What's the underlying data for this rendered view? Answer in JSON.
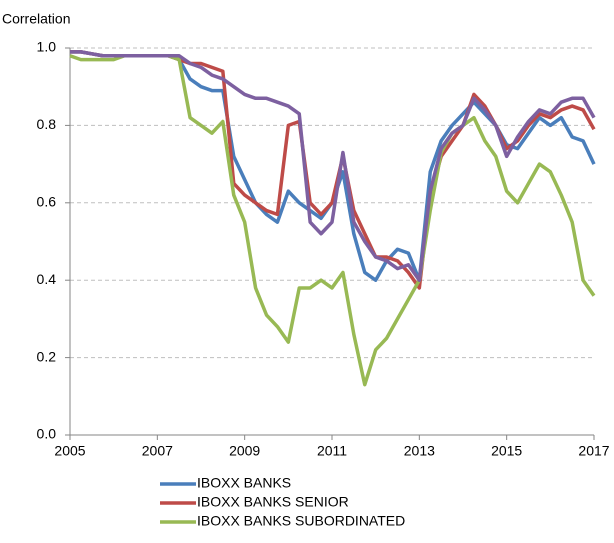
{
  "chart_data": {
    "type": "line",
    "ylabel": "Correlation",
    "x": [
      2005,
      2005.25,
      2005.5,
      2005.75,
      2006,
      2006.25,
      2006.5,
      2006.75,
      2007,
      2007.25,
      2007.5,
      2007.75,
      2008,
      2008.25,
      2008.5,
      2008.75,
      2009,
      2009.25,
      2009.5,
      2009.75,
      2010,
      2010.25,
      2010.5,
      2010.75,
      2011,
      2011.25,
      2011.5,
      2011.75,
      2012,
      2012.25,
      2012.5,
      2012.75,
      2013,
      2013.25,
      2013.5,
      2013.75,
      2014,
      2014.25,
      2014.5,
      2014.75,
      2015,
      2015.25,
      2015.5,
      2015.75,
      2016,
      2016.25,
      2016.5,
      2016.75,
      2017
    ],
    "series": [
      {
        "name": "IBOXX BANKS",
        "color": "#4a7ebb",
        "values": [
          0.99,
          0.99,
          0.985,
          0.98,
          0.98,
          0.98,
          0.98,
          0.98,
          0.98,
          0.98,
          0.97,
          0.92,
          0.9,
          0.89,
          0.89,
          0.72,
          0.66,
          0.6,
          0.57,
          0.55,
          0.63,
          0.6,
          0.58,
          0.56,
          0.6,
          0.68,
          0.52,
          0.42,
          0.4,
          0.45,
          0.48,
          0.47,
          0.4,
          0.68,
          0.76,
          0.8,
          0.83,
          0.86,
          0.83,
          0.8,
          0.75,
          0.74,
          0.78,
          0.82,
          0.8,
          0.82,
          0.77,
          0.76,
          0.7
        ]
      },
      {
        "name": "IBOXX BANKS SENIOR",
        "color": "#be4b48",
        "values": [
          0.99,
          0.99,
          0.985,
          0.98,
          0.98,
          0.98,
          0.98,
          0.98,
          0.98,
          0.98,
          0.97,
          0.96,
          0.96,
          0.95,
          0.94,
          0.65,
          0.62,
          0.6,
          0.58,
          0.57,
          0.8,
          0.81,
          0.6,
          0.57,
          0.6,
          0.72,
          0.58,
          0.52,
          0.46,
          0.46,
          0.45,
          0.42,
          0.38,
          0.62,
          0.72,
          0.76,
          0.8,
          0.88,
          0.85,
          0.8,
          0.74,
          0.76,
          0.8,
          0.83,
          0.82,
          0.84,
          0.85,
          0.84,
          0.79
        ]
      },
      {
        "name": "IBOXX BANKS SUBORDINATED",
        "color": "#98b954",
        "values": [
          0.98,
          0.97,
          0.97,
          0.97,
          0.97,
          0.98,
          0.98,
          0.98,
          0.98,
          0.98,
          0.97,
          0.82,
          0.8,
          0.78,
          0.81,
          0.62,
          0.55,
          0.38,
          0.31,
          0.28,
          0.24,
          0.38,
          0.38,
          0.4,
          0.38,
          0.42,
          0.26,
          0.13,
          0.22,
          0.25,
          0.3,
          0.35,
          0.4,
          0.58,
          0.73,
          0.78,
          0.8,
          0.82,
          0.76,
          0.72,
          0.63,
          0.6,
          0.65,
          0.7,
          0.68,
          0.62,
          0.55,
          0.4,
          0.36
        ]
      },
      {
        "color": "#7d60a0",
        "values": [
          0.99,
          0.99,
          0.985,
          0.98,
          0.98,
          0.98,
          0.98,
          0.98,
          0.98,
          0.98,
          0.98,
          0.96,
          0.95,
          0.93,
          0.92,
          0.9,
          0.88,
          0.87,
          0.87,
          0.86,
          0.85,
          0.83,
          0.55,
          0.52,
          0.55,
          0.73,
          0.55,
          0.5,
          0.46,
          0.45,
          0.43,
          0.44,
          0.4,
          0.63,
          0.74,
          0.78,
          0.8,
          0.87,
          0.84,
          0.8,
          0.72,
          0.77,
          0.81,
          0.84,
          0.83,
          0.86,
          0.87,
          0.87,
          0.82
        ]
      }
    ],
    "xlim": [
      2005,
      2017
    ],
    "xticks": [
      2005,
      2007,
      2009,
      2011,
      2013,
      2015,
      2017
    ],
    "ylim": [
      0,
      1
    ],
    "yticks": [
      {
        "value": 0,
        "label": "0.0"
      },
      0.2,
      0.4,
      0.6,
      0.8,
      {
        "value": 1,
        "label": "1.0"
      }
    ],
    "grid": true
  }
}
